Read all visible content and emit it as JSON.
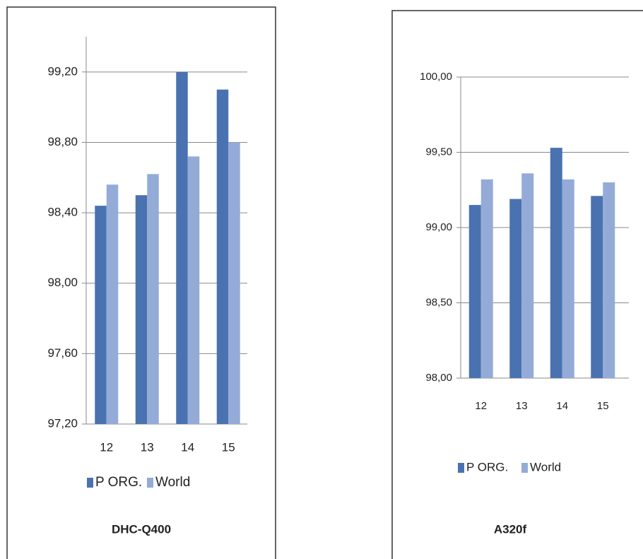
{
  "chart_data": [
    {
      "type": "bar",
      "title": "DHC-Q400",
      "categories": [
        "12",
        "13",
        "14",
        "15"
      ],
      "series": [
        {
          "name": "P ORG.",
          "color": "#4a72b0",
          "values": [
            98.44,
            98.5,
            99.2,
            99.1
          ]
        },
        {
          "name": "World",
          "color": "#94abd8",
          "values": [
            98.56,
            98.62,
            98.72,
            98.8
          ]
        }
      ],
      "ylim": [
        97.2,
        99.4
      ],
      "yticks": [
        {
          "value": 97.2,
          "label": "97,20"
        },
        {
          "value": 97.6,
          "label": "97,60"
        },
        {
          "value": 98.0,
          "label": "98,00"
        },
        {
          "value": 98.4,
          "label": "98,40"
        },
        {
          "value": 98.8,
          "label": "98,80"
        },
        {
          "value": 99.2,
          "label": "99,20"
        }
      ],
      "grid": true
    },
    {
      "type": "bar",
      "title": "A320f",
      "categories": [
        "12",
        "13",
        "14",
        "15"
      ],
      "series": [
        {
          "name": "P ORG.",
          "color": "#4a72b0",
          "values": [
            99.15,
            99.19,
            99.53,
            99.21
          ]
        },
        {
          "name": "World",
          "color": "#94abd8",
          "values": [
            99.32,
            99.36,
            99.32,
            99.3
          ]
        }
      ],
      "ylim": [
        98.0,
        100.0
      ],
      "yticks": [
        {
          "value": 98.0,
          "label": "98,00"
        },
        {
          "value": 98.5,
          "label": "98,50"
        },
        {
          "value": 99.0,
          "label": "99,00"
        },
        {
          "value": 99.5,
          "label": "99,50"
        },
        {
          "value": 100.0,
          "label": "100,00"
        }
      ],
      "grid": true
    }
  ]
}
